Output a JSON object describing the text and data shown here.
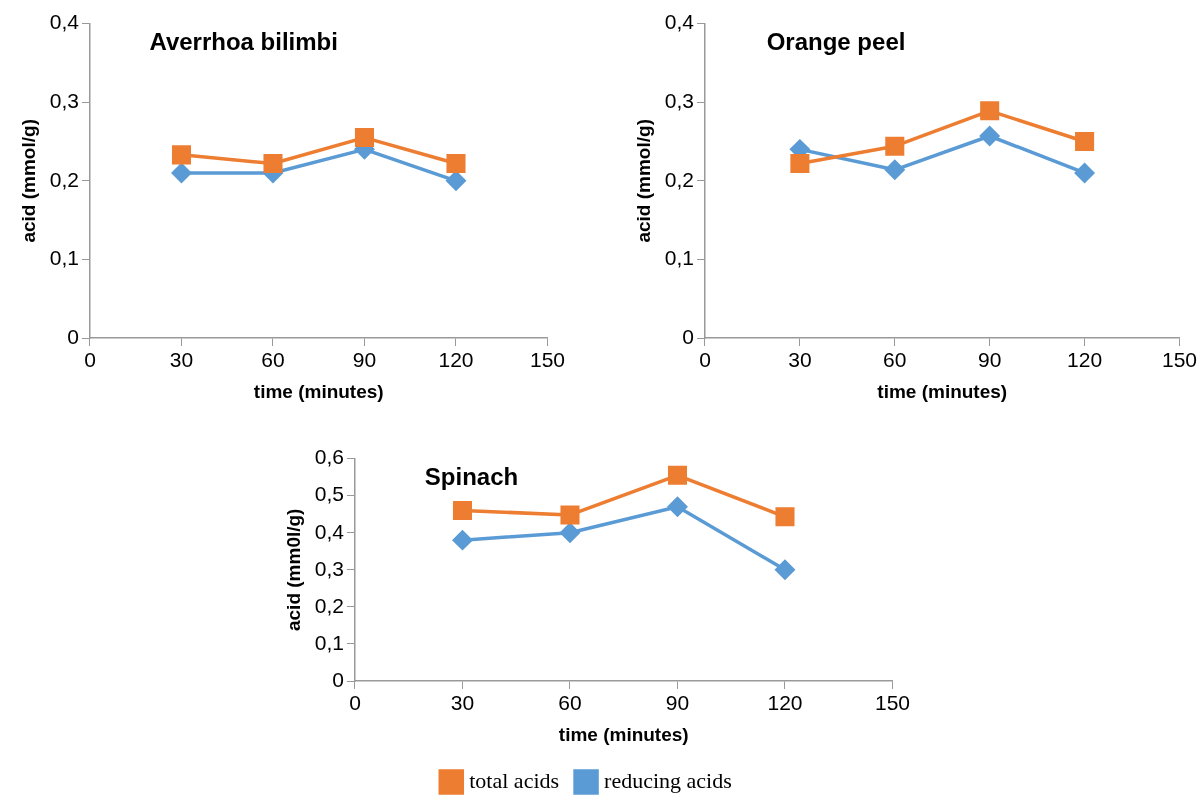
{
  "chart_data": [
    {
      "type": "line",
      "title": "Averrhoa bilimbi",
      "xlabel": "time (minutes)",
      "ylabel": "acid (mmol/g)",
      "x": [
        30,
        60,
        90,
        120
      ],
      "xlim": [
        0,
        150
      ],
      "xticks": [
        0,
        30,
        60,
        90,
        120,
        150
      ],
      "ylim": [
        0,
        0.4
      ],
      "yticks": [
        {
          "value": 0,
          "label": "0"
        },
        {
          "value": 0.1,
          "label": "0,1"
        },
        {
          "value": 0.2,
          "label": "0,2"
        },
        {
          "value": 0.3,
          "label": "0,3"
        },
        {
          "value": 0.4,
          "label": "0,4"
        }
      ],
      "grid": false,
      "legend": false,
      "series": [
        {
          "color": "#ed7d31",
          "marker": "square",
          "values": [
            0.233,
            0.222,
            0.255,
            0.222
          ]
        },
        {
          "color": "#5b9bd5",
          "marker": "diamond",
          "values": [
            0.21,
            0.21,
            0.24,
            0.2
          ]
        }
      ]
    },
    {
      "type": "line",
      "title": "Orange peel",
      "xlabel": "time (minutes)",
      "ylabel": "acid (mmol/g)",
      "x": [
        30,
        60,
        90,
        120
      ],
      "xlim": [
        0,
        150
      ],
      "xticks": [
        0,
        30,
        60,
        90,
        120,
        150
      ],
      "ylim": [
        0,
        0.4
      ],
      "yticks": [
        {
          "value": 0,
          "label": "0"
        },
        {
          "value": 0.1,
          "label": "0,1"
        },
        {
          "value": 0.2,
          "label": "0,2"
        },
        {
          "value": 0.3,
          "label": "0,3"
        },
        {
          "value": 0.4,
          "label": "0,4"
        }
      ],
      "grid": false,
      "legend": false,
      "series": [
        {
          "color": "#ed7d31",
          "marker": "square",
          "values": [
            0.222,
            0.244,
            0.289,
            0.25
          ]
        },
        {
          "color": "#5b9bd5",
          "marker": "diamond",
          "values": [
            0.24,
            0.214,
            0.257,
            0.21
          ]
        }
      ]
    },
    {
      "type": "line",
      "title": "Spinach",
      "xlabel": "time (minutes)",
      "ylabel": "acid (mm0l/g)",
      "x": [
        30,
        60,
        90,
        120
      ],
      "xlim": [
        0,
        150
      ],
      "xticks": [
        0,
        30,
        60,
        90,
        120,
        150
      ],
      "ylim": [
        0,
        0.6
      ],
      "yticks": [
        {
          "value": 0,
          "label": "0"
        },
        {
          "value": 0.1,
          "label": "0,1"
        },
        {
          "value": 0.2,
          "label": "0,2"
        },
        {
          "value": 0.3,
          "label": "0,3"
        },
        {
          "value": 0.4,
          "label": "0,4"
        },
        {
          "value": 0.5,
          "label": "0,5"
        },
        {
          "value": 0.6,
          "label": "0,6"
        }
      ],
      "grid": false,
      "legend": "bottom",
      "series": [
        {
          "name": "total acids",
          "color": "#ed7d31",
          "marker": "square",
          "values": [
            0.46,
            0.448,
            0.555,
            0.443
          ]
        },
        {
          "name": "reducing acids",
          "color": "#5b9bd5",
          "marker": "diamond",
          "values": [
            0.38,
            0.4,
            0.47,
            0.3
          ]
        }
      ]
    }
  ]
}
